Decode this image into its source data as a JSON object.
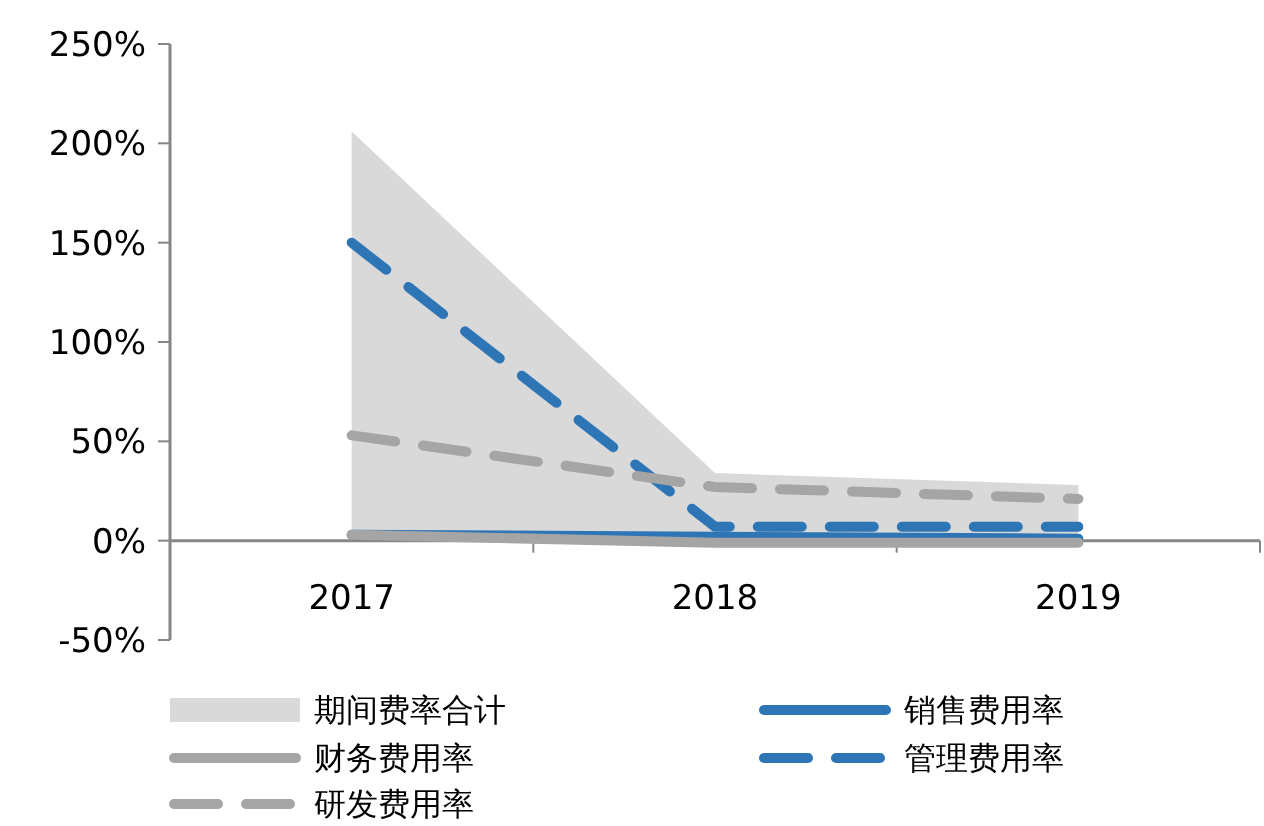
{
  "chart_data": {
    "type": "line",
    "categories": [
      "2017",
      "2018",
      "2019"
    ],
    "series": [
      {
        "name": "期间费率合计",
        "type": "area",
        "color": "#d9d9d9",
        "values": [
          206,
          34,
          28
        ]
      },
      {
        "name": "销售费用率",
        "color": "#2e75b6",
        "line_style": "solid",
        "values": [
          3,
          2,
          1
        ]
      },
      {
        "name": "财务费用率",
        "color": "#a5a5a5",
        "line_style": "solid",
        "values": [
          3,
          -1,
          -1
        ]
      },
      {
        "name": "管理费用率",
        "color": "#2e75b6",
        "line_style": "dashed",
        "values": [
          150,
          7,
          7
        ]
      },
      {
        "name": "研发费用率",
        "color": "#a5a5a5",
        "line_style": "dashed",
        "values": [
          53,
          27,
          21
        ]
      }
    ],
    "ylim": [
      -50,
      250
    ],
    "yticks": [
      {
        "value": -50,
        "label": "-50%"
      },
      {
        "value": 0,
        "label": "0%"
      },
      {
        "value": 50,
        "label": "50%"
      },
      {
        "value": 100,
        "label": "100%"
      },
      {
        "value": 150,
        "label": "150%"
      },
      {
        "value": 200,
        "label": "200%"
      },
      {
        "value": 250,
        "label": "250%"
      }
    ],
    "grid": false,
    "legend": "bottom",
    "marker": "none"
  }
}
